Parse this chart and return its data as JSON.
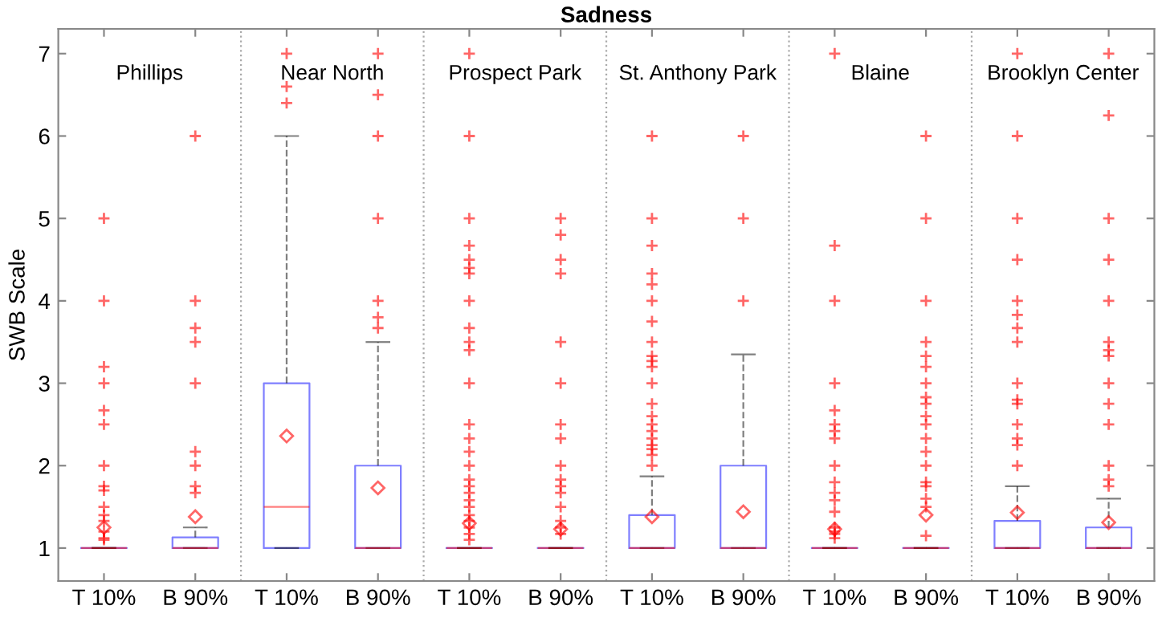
{
  "chart_data": {
    "type": "box",
    "title": "Sadness",
    "ylabel": "SWB Scale",
    "categories": [
      "T 10%",
      "B 90%",
      "T 10%",
      "B 90%",
      "T 10%",
      "B 90%",
      "T 10%",
      "B 90%",
      "T 10%",
      "B 90%",
      "T 10%",
      "B 90%"
    ],
    "annotations": [
      "Phillips",
      "Near North",
      "Prospect Park",
      "St. Anthony Park",
      "Blaine",
      "Brooklyn Center"
    ],
    "color": "#0000ff",
    "boxes": [
      {
        "low": 1,
        "q1": 1,
        "median": 1,
        "q3": 1,
        "high": 1,
        "mean": 1.25,
        "outliers": [
          1.1,
          1.12,
          1.2,
          1.33,
          1.4,
          1.5,
          1.7,
          1.75,
          2,
          2.5,
          2.67,
          3,
          3.2,
          4,
          5
        ]
      },
      {
        "low": 1,
        "q1": 1,
        "median": 1,
        "q3": 1.13,
        "high": 1.25,
        "mean": 1.38,
        "outliers": [
          1.67,
          1.75,
          2,
          2.17,
          3,
          3.5,
          3.67,
          4,
          6
        ]
      },
      {
        "low": 1,
        "q1": 1,
        "median": 1.5,
        "q3": 3,
        "high": 6,
        "mean": 2.36,
        "outliers": [
          6.4,
          6.6,
          7
        ]
      },
      {
        "low": 1,
        "q1": 1,
        "median": 1,
        "q3": 2,
        "high": 3.5,
        "mean": 1.73,
        "outliers": [
          3.67,
          3.8,
          4,
          5,
          6,
          6.5,
          7
        ]
      },
      {
        "low": 1,
        "q1": 1,
        "median": 1,
        "q3": 1,
        "high": 1,
        "mean": 1.3,
        "outliers": [
          1.1,
          1.17,
          1.25,
          1.33,
          1.4,
          1.5,
          1.58,
          1.67,
          1.75,
          1.83,
          2,
          2.17,
          2.33,
          2.5,
          3,
          3.4,
          3.5,
          3.67,
          4,
          4.33,
          4.4,
          4.5,
          4.67,
          5,
          6,
          7
        ]
      },
      {
        "low": 1,
        "q1": 1,
        "median": 1,
        "q3": 1,
        "high": 1,
        "mean": 1.23,
        "outliers": [
          1.17,
          1.25,
          1.33,
          1.5,
          1.67,
          1.75,
          1.83,
          2,
          2.33,
          2.5,
          3,
          3.5,
          4.33,
          4.5,
          4.8,
          5
        ]
      },
      {
        "low": 1,
        "q1": 1,
        "median": 1,
        "q3": 1.4,
        "high": 1.87,
        "mean": 1.38,
        "outliers": [
          2,
          2.13,
          2.2,
          2.25,
          2.33,
          2.42,
          2.5,
          2.6,
          2.75,
          3,
          3.2,
          3.27,
          3.33,
          3.5,
          3.75,
          4,
          4.2,
          4.33,
          4.67,
          5,
          6
        ]
      },
      {
        "low": 1,
        "q1": 1,
        "median": 1,
        "q3": 2,
        "high": 3.35,
        "mean": 1.44,
        "outliers": [
          4,
          5,
          6
        ]
      },
      {
        "low": 1,
        "q1": 1,
        "median": 1,
        "q3": 1,
        "high": 1,
        "mean": 1.23,
        "outliers": [
          1.12,
          1.17,
          1.2,
          1.25,
          1.44,
          1.58,
          1.67,
          1.8,
          2,
          2.33,
          2.42,
          2.5,
          2.67,
          3,
          4,
          4.67,
          7
        ]
      },
      {
        "low": 1,
        "q1": 1,
        "median": 1,
        "q3": 1,
        "high": 1,
        "mean": 1.4,
        "outliers": [
          1.15,
          1.5,
          1.6,
          1.75,
          1.8,
          2,
          2.17,
          2.33,
          2.5,
          2.6,
          2.75,
          2.83,
          3,
          3.2,
          3.33,
          3.5,
          4,
          5,
          6
        ]
      },
      {
        "low": 1,
        "q1": 1,
        "median": 1,
        "q3": 1.33,
        "high": 1.75,
        "mean": 1.43,
        "outliers": [
          2,
          2.25,
          2.33,
          2.5,
          2.75,
          2.8,
          3,
          3.5,
          3.67,
          3.83,
          4,
          4.5,
          5,
          6,
          7
        ]
      },
      {
        "low": 1,
        "q1": 1,
        "median": 1,
        "q3": 1.25,
        "high": 1.6,
        "mean": 1.31,
        "outliers": [
          1.75,
          1.83,
          2,
          2.5,
          2.75,
          3,
          3.33,
          3.4,
          3.5,
          4,
          4.5,
          5,
          6.25,
          7
        ]
      }
    ],
    "ylim": [
      0.6,
      7.3
    ],
    "yticks": [
      1,
      2,
      3,
      4,
      5,
      6,
      7
    ]
  }
}
